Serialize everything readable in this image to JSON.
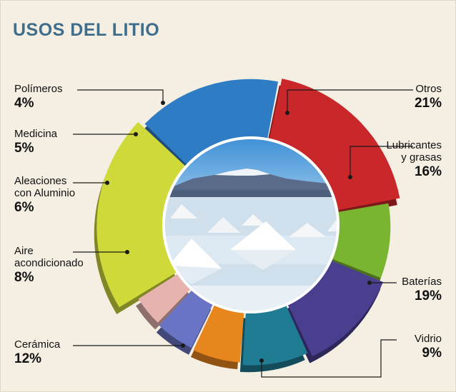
{
  "title": "USOS DEL LITIO",
  "colors": {
    "background": "#f4efe2",
    "title": "#3f6e8c"
  },
  "chart_data": {
    "type": "pie",
    "title": "USOS DEL LITIO",
    "unit": "%",
    "slices": [
      {
        "label": "Otros",
        "value": 21,
        "display": "21%",
        "color": "#cfd93a"
      },
      {
        "label": "Lubricantes\ny grasas",
        "value": 16,
        "display": "16%",
        "color": "#2e7cc4"
      },
      {
        "label": "Baterías",
        "value": 19,
        "display": "19%",
        "color": "#c9272a"
      },
      {
        "label": "Vidrio",
        "value": 9,
        "display": "9%",
        "color": "#7ab531"
      },
      {
        "label": "Cerámica",
        "value": 12,
        "display": "12%",
        "color": "#4a3f8f"
      },
      {
        "label": "Aire\nacondicionado",
        "value": 8,
        "display": "8%",
        "color": "#1f7c93"
      },
      {
        "label": "Aleaciones\ncon Aluminio",
        "value": 6,
        "display": "6%",
        "color": "#e8861e"
      },
      {
        "label": "Medicina",
        "value": 5,
        "display": "5%",
        "color": "#6a74c4"
      },
      {
        "label": "Polímeros",
        "value": 4,
        "display": "4%",
        "color": "#e6b3ae"
      }
    ]
  }
}
